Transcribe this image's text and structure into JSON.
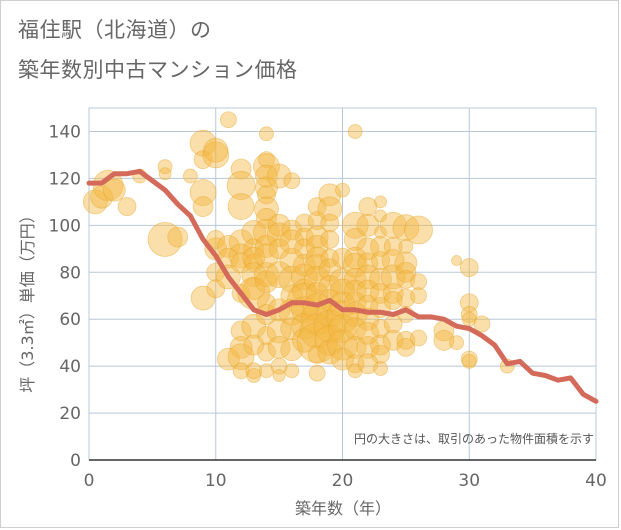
{
  "title_line1": "福住駅（北海道）の",
  "title_line2": "築年数別中古マンション価格",
  "chart_data": {
    "type": "scatter",
    "xlabel": "築年数（年）",
    "ylabel": "坪（3.3㎡）単価（万円）",
    "note": "円の大きさは、取引のあった物件面積を示す",
    "xlim": [
      0,
      40
    ],
    "ylim": [
      0,
      150
    ],
    "xticks": [
      0,
      10,
      20,
      30,
      40
    ],
    "yticks": [
      0,
      20,
      40,
      60,
      80,
      100,
      120,
      140
    ],
    "grid": true,
    "colors": {
      "bubble": "#f5b942",
      "line": "#d46a5a",
      "grid": "#b8c8d8"
    },
    "scatter": [
      [
        0.5,
        110,
        12
      ],
      [
        1,
        112,
        11
      ],
      [
        1.5,
        117,
        15
      ],
      [
        2,
        115,
        11
      ],
      [
        3,
        108,
        9
      ],
      [
        4,
        121,
        7
      ],
      [
        6,
        125,
        7
      ],
      [
        6,
        122,
        6
      ],
      [
        6,
        94,
        17
      ],
      [
        7,
        95,
        10
      ],
      [
        8,
        121,
        7
      ],
      [
        9,
        135,
        13
      ],
      [
        9,
        128,
        9
      ],
      [
        9,
        114,
        13
      ],
      [
        9,
        108,
        10
      ],
      [
        9,
        69,
        12
      ],
      [
        10,
        130,
        13
      ],
      [
        10,
        132,
        12
      ],
      [
        10,
        90,
        11
      ],
      [
        10,
        94,
        9
      ],
      [
        10,
        80,
        9
      ],
      [
        10,
        73,
        9
      ],
      [
        11,
        145,
        8
      ],
      [
        11,
        91,
        11
      ],
      [
        11,
        86,
        10
      ],
      [
        11,
        78,
        12
      ],
      [
        11,
        43,
        11
      ],
      [
        12,
        124,
        10
      ],
      [
        12,
        117,
        14
      ],
      [
        12,
        108,
        13
      ],
      [
        12,
        93,
        12
      ],
      [
        12,
        87,
        12
      ],
      [
        12,
        84,
        10
      ],
      [
        12,
        71,
        9
      ],
      [
        12,
        55,
        10
      ],
      [
        12,
        48,
        11
      ],
      [
        12,
        44,
        13
      ],
      [
        12,
        38,
        8
      ],
      [
        13,
        97,
        12
      ],
      [
        13,
        90,
        10
      ],
      [
        13,
        86,
        11
      ],
      [
        13,
        84,
        9
      ],
      [
        13,
        79,
        12
      ],
      [
        13,
        73,
        11
      ],
      [
        13,
        71,
        16
      ],
      [
        13,
        57,
        12
      ],
      [
        13,
        49,
        10
      ],
      [
        13,
        38,
        8
      ],
      [
        13,
        36,
        7
      ],
      [
        14,
        139,
        7
      ],
      [
        14,
        128,
        8
      ],
      [
        14,
        125,
        13
      ],
      [
        14,
        121,
        11
      ],
      [
        14,
        116,
        11
      ],
      [
        14,
        113,
        9
      ],
      [
        14,
        107,
        12
      ],
      [
        14,
        103,
        10
      ],
      [
        14,
        97,
        13
      ],
      [
        14,
        91,
        11
      ],
      [
        14,
        87,
        12
      ],
      [
        14,
        79,
        12
      ],
      [
        14,
        76,
        11
      ],
      [
        14,
        67,
        9
      ],
      [
        14,
        62,
        10
      ],
      [
        14,
        53,
        9
      ],
      [
        14,
        46,
        9
      ],
      [
        14,
        38,
        7
      ],
      [
        15,
        121,
        12
      ],
      [
        15,
        100,
        11
      ],
      [
        15,
        96,
        12
      ],
      [
        15,
        90,
        10
      ],
      [
        15,
        79,
        13
      ],
      [
        15,
        64,
        11
      ],
      [
        15,
        55,
        12
      ],
      [
        15,
        48,
        11
      ],
      [
        15,
        40,
        8
      ],
      [
        15,
        36,
        6
      ],
      [
        16,
        119,
        8
      ],
      [
        16,
        98,
        10
      ],
      [
        16,
        93,
        12
      ],
      [
        16,
        85,
        12
      ],
      [
        16,
        77,
        13
      ],
      [
        16,
        70,
        11
      ],
      [
        16,
        63,
        13
      ],
      [
        16,
        56,
        11
      ],
      [
        16,
        47,
        11
      ],
      [
        16,
        38,
        7
      ],
      [
        17,
        101,
        9
      ],
      [
        17,
        95,
        9
      ],
      [
        17,
        90,
        10
      ],
      [
        17,
        83,
        11
      ],
      [
        17,
        78,
        13
      ],
      [
        17,
        72,
        12
      ],
      [
        17,
        68,
        17
      ],
      [
        17,
        64,
        13
      ],
      [
        17,
        57,
        13
      ],
      [
        17,
        51,
        12
      ],
      [
        18,
        108,
        9
      ],
      [
        18,
        102,
        9
      ],
      [
        18,
        95,
        11
      ],
      [
        18,
        91,
        11
      ],
      [
        18,
        86,
        11
      ],
      [
        18,
        82,
        13
      ],
      [
        18,
        77,
        13
      ],
      [
        18,
        71,
        11
      ],
      [
        18,
        65,
        14
      ],
      [
        18,
        60,
        16
      ],
      [
        18,
        55,
        17
      ],
      [
        18,
        50,
        20
      ],
      [
        18,
        45,
        9
      ],
      [
        18,
        37,
        8
      ],
      [
        19,
        113,
        11
      ],
      [
        19,
        107,
        12
      ],
      [
        19,
        101,
        9
      ],
      [
        19,
        94,
        9
      ],
      [
        19,
        86,
        9
      ],
      [
        19,
        81,
        11
      ],
      [
        19,
        74,
        11
      ],
      [
        19,
        68,
        11
      ],
      [
        19,
        62,
        13
      ],
      [
        19,
        57,
        16
      ],
      [
        19,
        51,
        15
      ],
      [
        19,
        46,
        12
      ],
      [
        20,
        115,
        7
      ],
      [
        20,
        86,
        10
      ],
      [
        20,
        76,
        13
      ],
      [
        20,
        72,
        12
      ],
      [
        20,
        66,
        13
      ],
      [
        20,
        61,
        16
      ],
      [
        20,
        56,
        14
      ],
      [
        20,
        49,
        15
      ],
      [
        20,
        43,
        11
      ],
      [
        21,
        140,
        7
      ],
      [
        21,
        100,
        13
      ],
      [
        21,
        94,
        11
      ],
      [
        21,
        86,
        11
      ],
      [
        21,
        83,
        12
      ],
      [
        21,
        77,
        11
      ],
      [
        21,
        72,
        11
      ],
      [
        21,
        67,
        11
      ],
      [
        21,
        62,
        12
      ],
      [
        21,
        56,
        11
      ],
      [
        21,
        48,
        11
      ],
      [
        21,
        41,
        9
      ],
      [
        21,
        38,
        7
      ],
      [
        22,
        108,
        9
      ],
      [
        22,
        100,
        11
      ],
      [
        22,
        90,
        11
      ],
      [
        22,
        84,
        10
      ],
      [
        22,
        78,
        12
      ],
      [
        22,
        72,
        11
      ],
      [
        22,
        66,
        10
      ],
      [
        22,
        60,
        11
      ],
      [
        22,
        54,
        11
      ],
      [
        22,
        48,
        11
      ],
      [
        22,
        41,
        10
      ],
      [
        23,
        110,
        6
      ],
      [
        23,
        104,
        6
      ],
      [
        23,
        97,
        6
      ],
      [
        23,
        91,
        10
      ],
      [
        23,
        85,
        9
      ],
      [
        23,
        77,
        11
      ],
      [
        23,
        71,
        10
      ],
      [
        23,
        65,
        10
      ],
      [
        23,
        56,
        9
      ],
      [
        23,
        49,
        10
      ],
      [
        23,
        45,
        9
      ],
      [
        23,
        39,
        7
      ],
      [
        24,
        100,
        13
      ],
      [
        24,
        91,
        9
      ],
      [
        24,
        85,
        11
      ],
      [
        24,
        78,
        12
      ],
      [
        24,
        71,
        10
      ],
      [
        24,
        68,
        9
      ],
      [
        24,
        58,
        9
      ],
      [
        24,
        51,
        10
      ],
      [
        25,
        99,
        13
      ],
      [
        25,
        91,
        7
      ],
      [
        25,
        84,
        11
      ],
      [
        25,
        80,
        10
      ],
      [
        25,
        77,
        9
      ],
      [
        25,
        69,
        9
      ],
      [
        25,
        62,
        8
      ],
      [
        25,
        51,
        9
      ],
      [
        25,
        48,
        9
      ],
      [
        26,
        98,
        14
      ],
      [
        26,
        76,
        8
      ],
      [
        26,
        70,
        8
      ],
      [
        26,
        52,
        8
      ],
      [
        28,
        55,
        10
      ],
      [
        28,
        51,
        10
      ],
      [
        29,
        50,
        7
      ],
      [
        29,
        85,
        5
      ],
      [
        30,
        82,
        9
      ],
      [
        30,
        67,
        9
      ],
      [
        30,
        62,
        8
      ],
      [
        30,
        60,
        7
      ],
      [
        30,
        43,
        8
      ],
      [
        30,
        42,
        7
      ],
      [
        31,
        58,
        8
      ],
      [
        33,
        40,
        7
      ]
    ],
    "line": {
      "x": [
        0,
        1,
        2,
        3,
        4,
        5,
        6,
        7,
        8,
        9,
        10,
        11,
        12,
        13,
        14,
        15,
        16,
        17,
        18,
        19,
        20,
        21,
        22,
        23,
        24,
        25,
        26,
        27,
        28,
        29,
        30,
        31,
        32,
        33,
        34,
        35,
        36,
        37,
        38,
        39,
        40
      ],
      "y": [
        118,
        118,
        122,
        122,
        123,
        119,
        115,
        109,
        104,
        94,
        87,
        78,
        71,
        64,
        62,
        64,
        67,
        67,
        66,
        68,
        64,
        64,
        63,
        63,
        62,
        64,
        61,
        61,
        60,
        57,
        56,
        53,
        49,
        41,
        42,
        37,
        36,
        34,
        35,
        28,
        25
      ]
    }
  }
}
